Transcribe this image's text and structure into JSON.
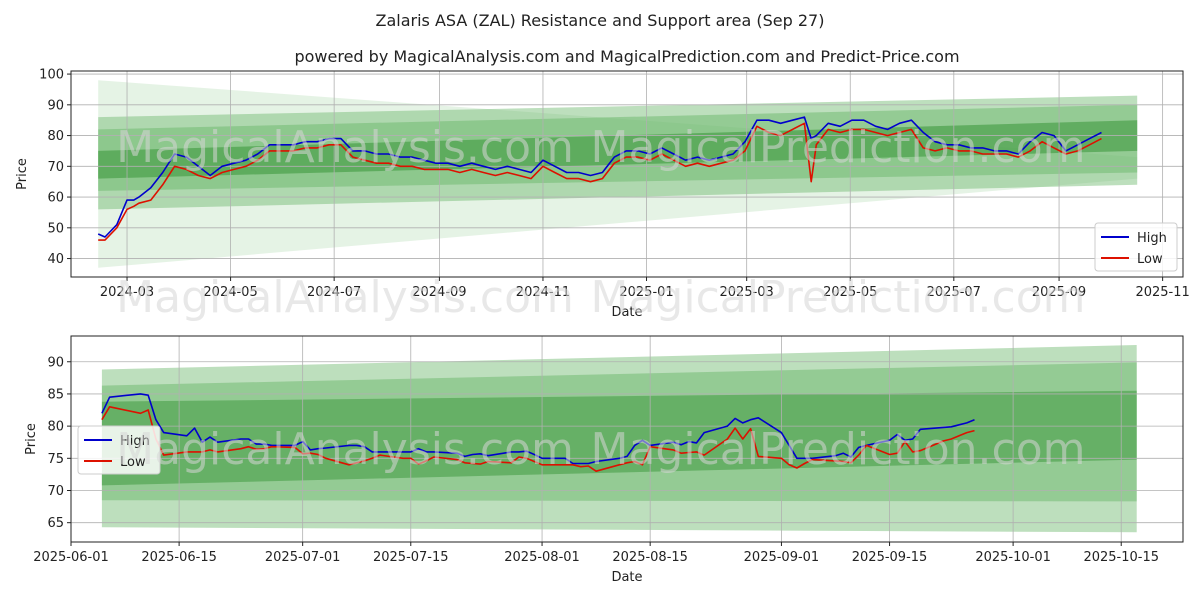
{
  "figure": {
    "title": "Zalaris ASA (ZAL) Resistance and Support area (Sep 27)",
    "subtitle": "powered by MagicalAnalysis.com and MagicalPrediction.com and Predict-Price.com",
    "watermark_left": "MagicalAnalysis.com",
    "watermark_right": "MagicalPrediction.com"
  },
  "colors": {
    "high": "#0000cc",
    "low": "#dd1100",
    "band_dark": "#3f9a3f",
    "band_mid": "#6cb86c",
    "band_light": "#a9d6a9",
    "grid": "#b0b0b0"
  },
  "chart_data": [
    {
      "type": "line",
      "name": "full-history",
      "xlabel": "Date",
      "ylabel": "Price",
      "xlim": [
        "2024-01-28",
        "2025-11-13"
      ],
      "ylim": [
        34,
        101
      ],
      "x_tick_labels": [
        "2024-03",
        "2024-05",
        "2024-07",
        "2024-09",
        "2024-11",
        "2025-01",
        "2025-03",
        "2025-05",
        "2025-07",
        "2025-09",
        "2025-11"
      ],
      "x_ticks": [
        "2024-03-01",
        "2024-05-01",
        "2024-07-01",
        "2024-09-01",
        "2024-11-01",
        "2025-01-01",
        "2025-03-01",
        "2025-05-01",
        "2025-07-01",
        "2025-09-01",
        "2025-11-01"
      ],
      "y_ticks": [
        40,
        50,
        60,
        70,
        80,
        90,
        100
      ],
      "legend": {
        "position": "lower-right",
        "entries": [
          "High",
          "Low"
        ]
      },
      "bands": [
        {
          "x": [
            "2024-02-13",
            "2025-10-17"
          ],
          "upper": [
            98,
            73
          ],
          "lower": [
            37,
            66
          ],
          "shade": "band_light",
          "opacity": 0.3
        },
        {
          "x": [
            "2024-02-13",
            "2025-10-17"
          ],
          "upper": [
            86,
            93
          ],
          "lower": [
            56,
            64
          ],
          "shade": "band_mid",
          "opacity": 0.45
        },
        {
          "x": [
            "2024-02-13",
            "2025-10-17"
          ],
          "upper": [
            82,
            90
          ],
          "lower": [
            62,
            68
          ],
          "shade": "band_mid",
          "opacity": 0.5
        },
        {
          "x": [
            "2024-02-13",
            "2025-10-17"
          ],
          "upper": [
            75,
            85
          ],
          "lower": [
            66,
            75
          ],
          "shade": "band_dark",
          "opacity": 0.6
        }
      ],
      "series": [
        {
          "name": "High",
          "x": [
            "2024-02-13",
            "2024-02-17",
            "2024-02-24",
            "2024-03-01",
            "2024-03-05",
            "2024-03-08",
            "2024-03-15",
            "2024-03-22",
            "2024-03-29",
            "2024-04-05",
            "2024-04-12",
            "2024-04-19",
            "2024-04-26",
            "2024-05-03",
            "2024-05-10",
            "2024-05-17",
            "2024-05-24",
            "2024-05-31",
            "2024-06-07",
            "2024-06-14",
            "2024-06-21",
            "2024-06-28",
            "2024-07-05",
            "2024-07-12",
            "2024-07-19",
            "2024-07-26",
            "2024-08-02",
            "2024-08-09",
            "2024-08-16",
            "2024-08-23",
            "2024-08-30",
            "2024-09-06",
            "2024-09-13",
            "2024-09-20",
            "2024-09-27",
            "2024-10-04",
            "2024-10-11",
            "2024-10-18",
            "2024-10-25",
            "2024-11-01",
            "2024-11-08",
            "2024-11-15",
            "2024-11-22",
            "2024-11-29",
            "2024-12-06",
            "2024-12-13",
            "2024-12-20",
            "2024-12-27",
            "2025-01-03",
            "2025-01-10",
            "2025-01-17",
            "2025-01-24",
            "2025-01-31",
            "2025-02-07",
            "2025-02-14",
            "2025-02-21",
            "2025-02-28",
            "2025-03-07",
            "2025-03-14",
            "2025-03-21",
            "2025-03-28",
            "2025-04-04",
            "2025-04-08",
            "2025-04-11",
            "2025-04-18",
            "2025-04-25",
            "2025-05-02",
            "2025-05-09",
            "2025-05-16",
            "2025-05-23",
            "2025-05-30",
            "2025-06-06",
            "2025-06-13",
            "2025-06-20",
            "2025-06-27",
            "2025-07-04",
            "2025-07-11",
            "2025-07-18",
            "2025-07-25",
            "2025-08-01",
            "2025-08-08",
            "2025-08-15",
            "2025-08-22",
            "2025-08-29",
            "2025-09-05",
            "2025-09-12",
            "2025-09-19",
            "2025-09-26"
          ],
          "values": [
            48,
            47,
            51,
            59,
            59,
            60,
            63,
            68,
            74,
            73,
            70,
            67,
            70,
            71,
            72,
            74,
            77,
            77,
            77,
            78,
            78,
            79,
            79,
            75,
            75,
            74,
            74,
            73,
            73,
            72,
            71,
            71,
            70,
            71,
            70,
            69,
            70,
            69,
            68,
            72,
            70,
            68,
            68,
            67,
            68,
            73,
            75,
            75,
            74,
            76,
            74,
            72,
            73,
            72,
            73,
            74,
            78,
            85,
            85,
            84,
            85,
            86,
            79,
            80,
            84,
            83,
            85,
            85,
            83,
            82,
            84,
            85,
            81,
            78,
            77,
            77,
            76,
            76,
            75,
            75,
            74,
            78,
            81,
            80,
            75,
            77,
            79,
            81
          ]
        },
        {
          "name": "Low",
          "x": [
            "2024-02-13",
            "2024-02-17",
            "2024-02-24",
            "2024-03-01",
            "2024-03-05",
            "2024-03-08",
            "2024-03-15",
            "2024-03-22",
            "2024-03-29",
            "2024-04-05",
            "2024-04-12",
            "2024-04-19",
            "2024-04-26",
            "2024-05-03",
            "2024-05-10",
            "2024-05-17",
            "2024-05-24",
            "2024-05-31",
            "2024-06-07",
            "2024-06-14",
            "2024-06-21",
            "2024-06-28",
            "2024-07-05",
            "2024-07-12",
            "2024-07-19",
            "2024-07-26",
            "2024-08-02",
            "2024-08-09",
            "2024-08-16",
            "2024-08-23",
            "2024-08-30",
            "2024-09-06",
            "2024-09-13",
            "2024-09-20",
            "2024-09-27",
            "2024-10-04",
            "2024-10-11",
            "2024-10-18",
            "2024-10-25",
            "2024-11-01",
            "2024-11-08",
            "2024-11-15",
            "2024-11-22",
            "2024-11-29",
            "2024-12-06",
            "2024-12-13",
            "2024-12-20",
            "2024-12-27",
            "2025-01-03",
            "2025-01-10",
            "2025-01-17",
            "2025-01-24",
            "2025-01-31",
            "2025-02-07",
            "2025-02-14",
            "2025-02-21",
            "2025-02-28",
            "2025-03-07",
            "2025-03-14",
            "2025-03-21",
            "2025-03-28",
            "2025-04-04",
            "2025-04-08",
            "2025-04-11",
            "2025-04-18",
            "2025-04-25",
            "2025-05-02",
            "2025-05-09",
            "2025-05-16",
            "2025-05-23",
            "2025-05-30",
            "2025-06-06",
            "2025-06-13",
            "2025-06-20",
            "2025-06-27",
            "2025-07-04",
            "2025-07-11",
            "2025-07-18",
            "2025-07-25",
            "2025-08-01",
            "2025-08-08",
            "2025-08-15",
            "2025-08-22",
            "2025-08-29",
            "2025-09-05",
            "2025-09-12",
            "2025-09-19",
            "2025-09-26"
          ],
          "values": [
            46,
            46,
            50,
            56,
            57,
            58,
            59,
            64,
            70,
            69,
            67,
            66,
            68,
            69,
            70,
            72,
            75,
            75,
            75,
            76,
            76,
            77,
            77,
            73,
            72,
            71,
            71,
            70,
            70,
            69,
            69,
            69,
            68,
            69,
            68,
            67,
            68,
            67,
            66,
            70,
            68,
            66,
            66,
            65,
            66,
            71,
            73,
            73,
            72,
            74,
            72,
            70,
            71,
            70,
            71,
            72,
            75,
            83,
            81,
            80,
            82,
            84,
            65,
            77,
            82,
            81,
            82,
            82,
            81,
            80,
            81,
            82,
            76,
            75,
            76,
            75,
            75,
            74,
            74,
            74,
            73,
            75,
            78,
            76,
            74,
            75,
            77,
            79
          ]
        }
      ]
    },
    {
      "type": "line",
      "name": "recent-zoom",
      "xlabel": "Date",
      "ylabel": "Price",
      "xlim": [
        "2025-06-01",
        "2025-10-23"
      ],
      "ylim": [
        62,
        94
      ],
      "x_tick_labels": [
        "2025-06-01",
        "2025-06-15",
        "2025-07-01",
        "2025-07-15",
        "2025-08-01",
        "2025-08-15",
        "2025-09-01",
        "2025-09-15",
        "2025-10-01",
        "2025-10-15"
      ],
      "x_ticks": [
        "2025-06-01",
        "2025-06-15",
        "2025-07-01",
        "2025-07-15",
        "2025-08-01",
        "2025-08-15",
        "2025-09-01",
        "2025-09-15",
        "2025-10-01",
        "2025-10-15"
      ],
      "y_ticks": [
        65,
        70,
        75,
        80,
        85,
        90
      ],
      "legend": {
        "position": "center-left",
        "entries": [
          "High",
          "Low"
        ]
      },
      "bands": [
        {
          "x": [
            "2025-06-05",
            "2025-10-17"
          ],
          "upper": [
            88.8,
            92.6
          ],
          "lower": [
            64.3,
            63.5
          ],
          "shade": "band_mid",
          "opacity": 0.45
        },
        {
          "x": [
            "2025-06-05",
            "2025-10-17"
          ],
          "upper": [
            86.3,
            89.9
          ],
          "lower": [
            68.5,
            68.3
          ],
          "shade": "band_mid",
          "opacity": 0.5
        },
        {
          "x": [
            "2025-06-05",
            "2025-10-17"
          ],
          "upper": [
            83.8,
            85.5
          ],
          "lower": [
            70.8,
            74.8
          ],
          "shade": "band_dark",
          "opacity": 0.55
        }
      ],
      "series": [
        {
          "name": "High",
          "x": [
            "2025-06-05",
            "2025-06-06",
            "2025-06-10",
            "2025-06-11",
            "2025-06-12",
            "2025-06-13",
            "2025-06-16",
            "2025-06-17",
            "2025-06-18",
            "2025-06-19",
            "2025-06-20",
            "2025-06-23",
            "2025-06-24",
            "2025-06-25",
            "2025-06-26",
            "2025-06-27",
            "2025-06-30",
            "2025-07-01",
            "2025-07-02",
            "2025-07-03",
            "2025-07-04",
            "2025-07-07",
            "2025-07-08",
            "2025-07-09",
            "2025-07-10",
            "2025-07-11",
            "2025-07-14",
            "2025-07-15",
            "2025-07-16",
            "2025-07-17",
            "2025-07-18",
            "2025-07-21",
            "2025-07-22",
            "2025-07-23",
            "2025-07-24",
            "2025-07-25",
            "2025-07-28",
            "2025-07-29",
            "2025-07-30",
            "2025-07-31",
            "2025-08-01",
            "2025-08-04",
            "2025-08-05",
            "2025-08-06",
            "2025-08-07",
            "2025-08-08",
            "2025-08-11",
            "2025-08-12",
            "2025-08-13",
            "2025-08-14",
            "2025-08-15",
            "2025-08-18",
            "2025-08-19",
            "2025-08-20",
            "2025-08-21",
            "2025-08-22",
            "2025-08-25",
            "2025-08-26",
            "2025-08-27",
            "2025-08-28",
            "2025-08-29",
            "2025-09-01",
            "2025-09-02",
            "2025-09-03",
            "2025-09-04",
            "2025-09-05",
            "2025-09-08",
            "2025-09-09",
            "2025-09-10",
            "2025-09-11",
            "2025-09-12",
            "2025-09-15",
            "2025-09-16",
            "2025-09-17",
            "2025-09-18",
            "2025-09-19",
            "2025-09-22",
            "2025-09-23",
            "2025-09-24",
            "2025-09-25",
            "2025-09-26"
          ],
          "values": [
            82,
            84.5,
            85,
            84.8,
            81,
            79,
            78.5,
            79.7,
            77.5,
            78.3,
            77.5,
            78,
            78,
            77.2,
            77.2,
            77,
            77,
            77.6,
            76.3,
            76.5,
            76.6,
            77,
            77,
            76.8,
            76,
            76,
            76,
            76,
            76.5,
            76,
            76,
            75.8,
            75.3,
            75.6,
            75.7,
            75.4,
            76,
            76,
            76.1,
            75.6,
            75,
            75,
            74.2,
            74.2,
            74.2,
            74.5,
            75,
            75.3,
            77,
            77.8,
            77,
            77.5,
            77.1,
            77.6,
            77.4,
            79,
            80,
            81.2,
            80.5,
            81,
            81.3,
            79,
            77,
            75,
            75,
            75,
            75.4,
            75.8,
            75.2,
            76.7,
            77,
            77.8,
            78.7,
            77.8,
            78,
            79.5,
            79.8,
            79.9,
            80.2,
            80.5,
            81
          ]
        },
        {
          "name": "Low",
          "x": [
            "2025-06-05",
            "2025-06-06",
            "2025-06-10",
            "2025-06-11",
            "2025-06-12",
            "2025-06-13",
            "2025-06-16",
            "2025-06-17",
            "2025-06-18",
            "2025-06-19",
            "2025-06-20",
            "2025-06-23",
            "2025-06-24",
            "2025-06-25",
            "2025-06-26",
            "2025-06-27",
            "2025-06-30",
            "2025-07-01",
            "2025-07-02",
            "2025-07-03",
            "2025-07-04",
            "2025-07-07",
            "2025-07-08",
            "2025-07-09",
            "2025-07-10",
            "2025-07-11",
            "2025-07-14",
            "2025-07-15",
            "2025-07-16",
            "2025-07-17",
            "2025-07-18",
            "2025-07-21",
            "2025-07-22",
            "2025-07-23",
            "2025-07-24",
            "2025-07-25",
            "2025-07-28",
            "2025-07-29",
            "2025-07-30",
            "2025-07-31",
            "2025-08-01",
            "2025-08-04",
            "2025-08-05",
            "2025-08-06",
            "2025-08-07",
            "2025-08-08",
            "2025-08-11",
            "2025-08-12",
            "2025-08-13",
            "2025-08-14",
            "2025-08-15",
            "2025-08-18",
            "2025-08-19",
            "2025-08-20",
            "2025-08-21",
            "2025-08-22",
            "2025-08-25",
            "2025-08-26",
            "2025-08-27",
            "2025-08-28",
            "2025-08-29",
            "2025-09-01",
            "2025-09-02",
            "2025-09-03",
            "2025-09-04",
            "2025-09-05",
            "2025-09-08",
            "2025-09-09",
            "2025-09-10",
            "2025-09-11",
            "2025-09-12",
            "2025-09-15",
            "2025-09-16",
            "2025-09-17",
            "2025-09-18",
            "2025-09-19",
            "2025-09-22",
            "2025-09-23",
            "2025-09-24",
            "2025-09-25",
            "2025-09-26"
          ],
          "values": [
            81,
            83,
            82,
            82.5,
            78,
            75.5,
            76,
            76,
            76,
            76.3,
            76,
            76.5,
            76.8,
            76.4,
            76.5,
            76.8,
            76.7,
            75.7,
            75.8,
            75.6,
            75,
            74,
            74.3,
            74.6,
            75,
            75.5,
            75,
            75,
            74.1,
            74.6,
            75.2,
            74.8,
            74.3,
            74.2,
            74.1,
            74.5,
            74.3,
            75.2,
            75,
            74.5,
            74,
            74,
            74,
            73.7,
            73.8,
            73,
            74,
            74.3,
            74.5,
            74,
            76.8,
            76.3,
            75.8,
            75.9,
            76,
            75.5,
            78,
            79.7,
            78,
            79.6,
            75.3,
            75,
            74,
            73.5,
            74.2,
            74.8,
            74.6,
            74.5,
            74.3,
            75.5,
            77,
            75.6,
            75.8,
            77.6,
            76,
            76.2,
            77.7,
            78,
            78.5,
            79,
            79.3
          ]
        }
      ]
    }
  ]
}
